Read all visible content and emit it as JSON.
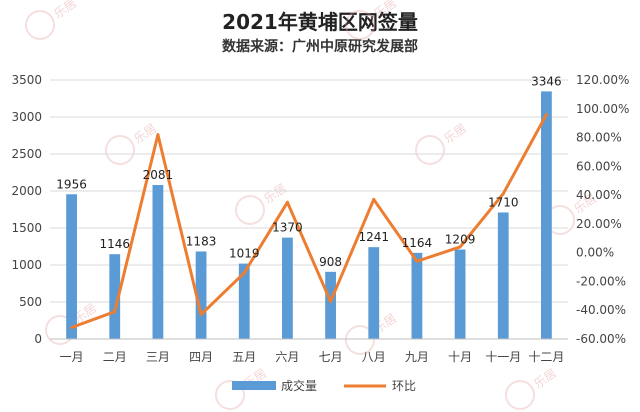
{
  "chart_data": {
    "type": "bar",
    "title": "2021年黄埔区网签量",
    "subtitle": "数据来源：广州中原研究发展部",
    "categories": [
      "一月",
      "二月",
      "三月",
      "四月",
      "五月",
      "六月",
      "七月",
      "八月",
      "九月",
      "十月",
      "十一月",
      "十二月"
    ],
    "series": [
      {
        "name": "成交量",
        "type": "bar",
        "axis": "left",
        "values": [
          1956,
          1146,
          2081,
          1183,
          1019,
          1370,
          908,
          1241,
          1164,
          1209,
          1710,
          3346
        ]
      },
      {
        "name": "环比",
        "type": "line",
        "axis": "right",
        "values": [
          -0.52,
          -0.41,
          0.82,
          -0.43,
          -0.14,
          0.35,
          -0.34,
          0.37,
          -0.06,
          0.04,
          0.41,
          0.96
        ]
      }
    ],
    "ylim_left": [
      0,
      3500
    ],
    "yticks_left": [
      "0",
      "500",
      "1000",
      "1500",
      "2000",
      "2500",
      "3000",
      "3500"
    ],
    "ylim_right": [
      -0.6,
      1.2
    ],
    "yticks_right": [
      "-60.00%",
      "-40.00%",
      "-20.00%",
      "0.00%",
      "20.00%",
      "40.00%",
      "60.00%",
      "80.00%",
      "100.00%",
      "120.00%"
    ],
    "bar_color": "#5B9BD5",
    "line_color": "#ED7D31",
    "legend_position": "bottom",
    "watermark_text": "乐居"
  }
}
